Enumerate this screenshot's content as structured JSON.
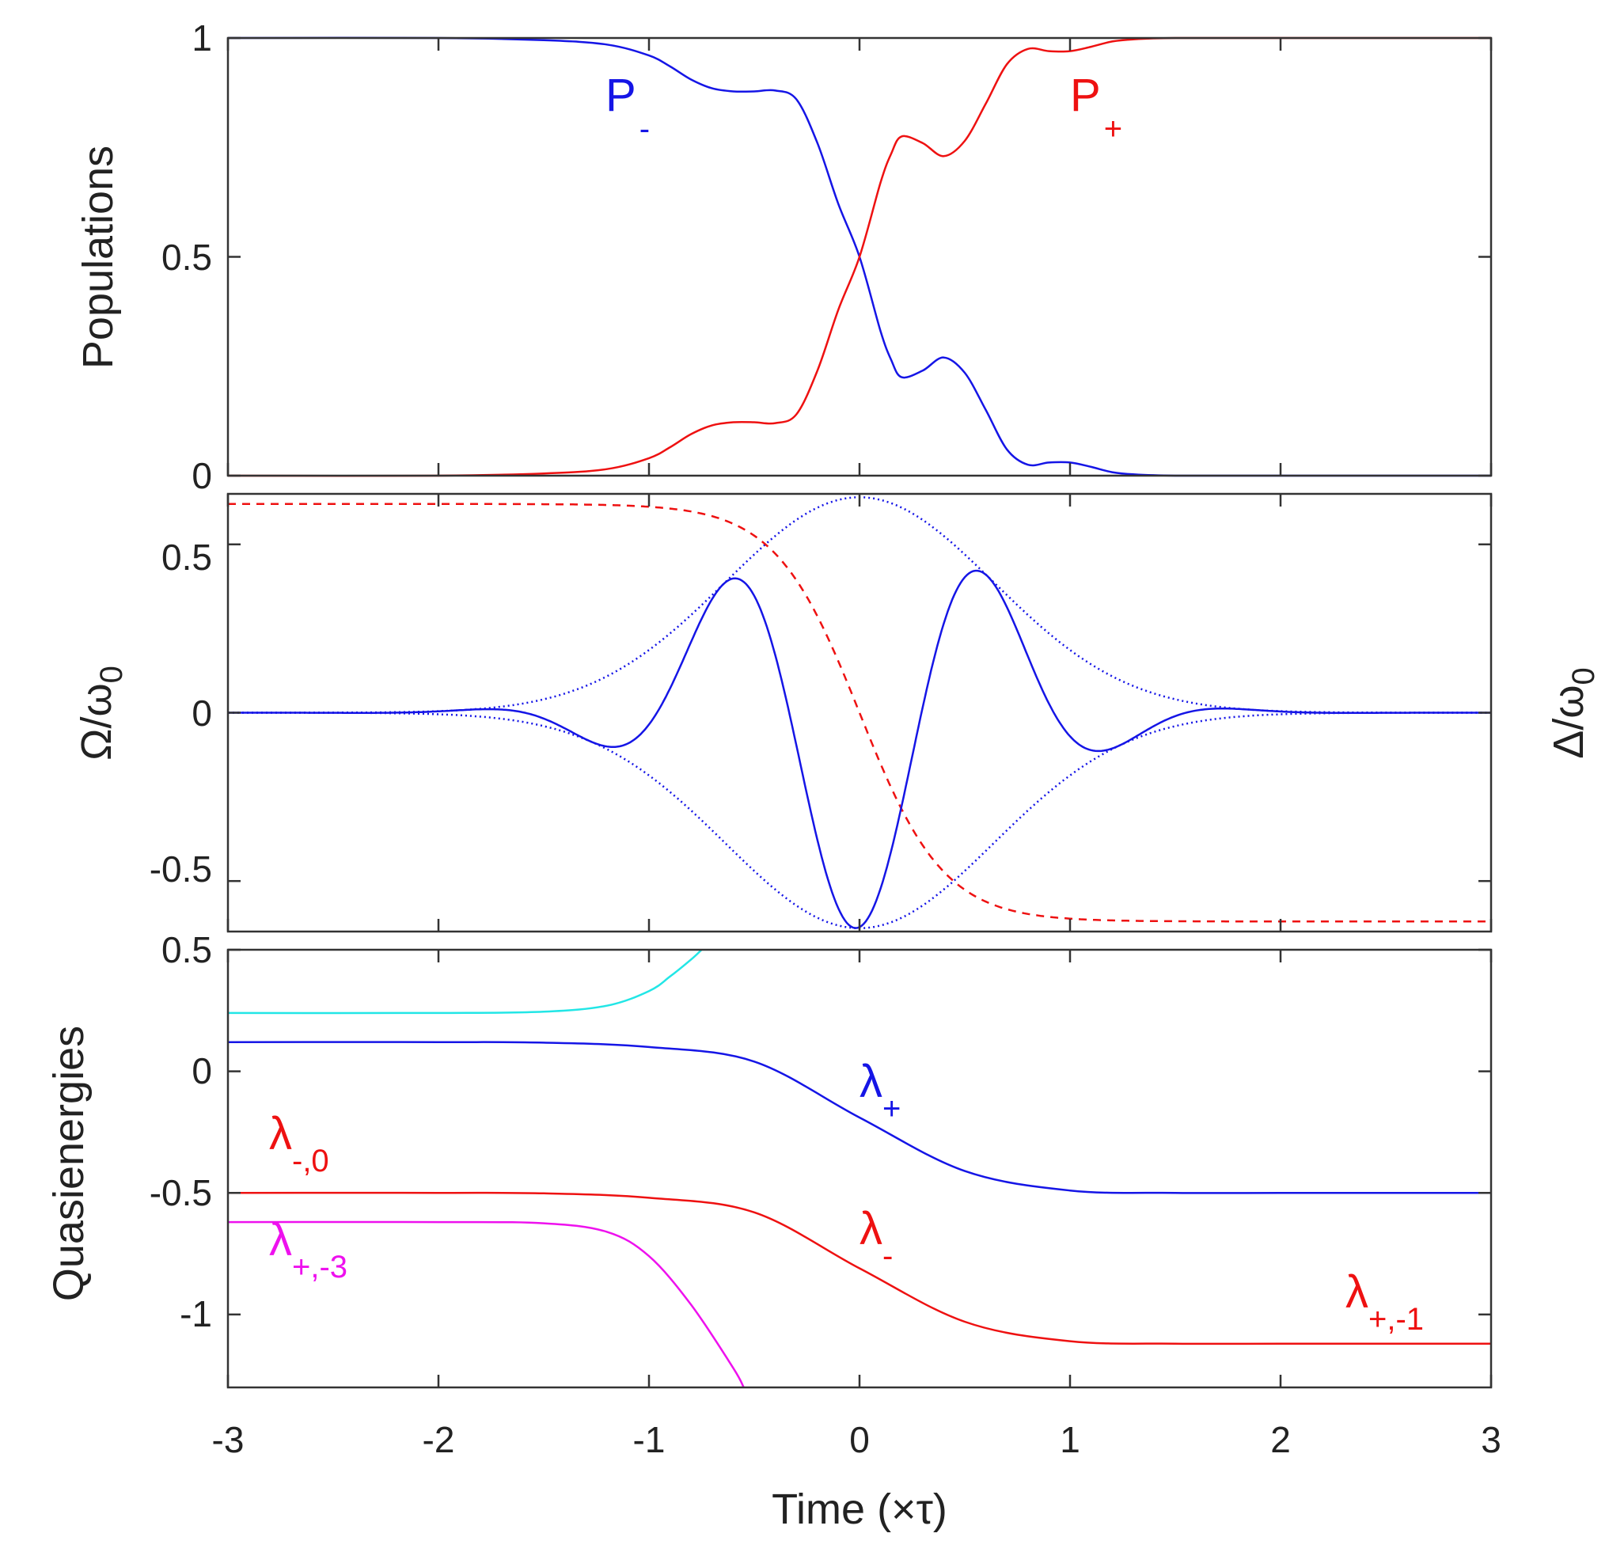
{
  "colors": {
    "blue": "#1515e6",
    "red": "#ee1111",
    "cyan": "#22e6e6",
    "magenta": "#ee11ee",
    "axis": "#333333",
    "text": "#222222"
  },
  "xaxis": {
    "label": "Time (×τ)",
    "ticks": [
      -3,
      -2,
      -1,
      0,
      1,
      2,
      3
    ],
    "tick_labels": [
      "-3",
      "-2",
      "-1",
      "0",
      "1",
      "2",
      "3"
    ],
    "range": [
      -3,
      3
    ]
  },
  "chart_data": [
    {
      "type": "line",
      "panel": "populations",
      "ylabel": "Populations",
      "ylim": [
        0,
        1
      ],
      "yticks": [
        0,
        0.5,
        1
      ],
      "ytick_labels": [
        "0",
        "0.5",
        "1"
      ],
      "series": [
        {
          "name": "P-",
          "color": "blue",
          "style": "solid",
          "x": [
            -3,
            -2,
            -1.5,
            -1.2,
            -1.0,
            -0.9,
            -0.8,
            -0.7,
            -0.6,
            -0.5,
            -0.4,
            -0.3,
            -0.2,
            -0.1,
            0.0,
            0.1,
            0.15,
            0.2,
            0.3,
            0.4,
            0.5,
            0.6,
            0.7,
            0.8,
            0.9,
            1.0,
            1.1,
            1.2,
            1.3,
            1.5,
            2,
            3
          ],
          "y": [
            1.0,
            1.0,
            0.995,
            0.985,
            0.96,
            0.935,
            0.905,
            0.885,
            0.878,
            0.878,
            0.88,
            0.86,
            0.76,
            0.62,
            0.5,
            0.33,
            0.265,
            0.225,
            0.24,
            0.27,
            0.235,
            0.15,
            0.06,
            0.025,
            0.03,
            0.03,
            0.02,
            0.008,
            0.003,
            0.0,
            0.0,
            0.0
          ]
        },
        {
          "name": "P+",
          "color": "red",
          "style": "solid",
          "x": [
            -3,
            -2,
            -1.5,
            -1.2,
            -1.0,
            -0.9,
            -0.8,
            -0.7,
            -0.6,
            -0.5,
            -0.4,
            -0.3,
            -0.2,
            -0.1,
            0.0,
            0.1,
            0.15,
            0.2,
            0.3,
            0.4,
            0.5,
            0.6,
            0.7,
            0.8,
            0.9,
            1.0,
            1.1,
            1.2,
            1.3,
            1.5,
            2,
            3
          ],
          "y": [
            0.0,
            0.0,
            0.005,
            0.015,
            0.04,
            0.065,
            0.095,
            0.115,
            0.122,
            0.122,
            0.12,
            0.14,
            0.24,
            0.38,
            0.5,
            0.67,
            0.735,
            0.775,
            0.76,
            0.73,
            0.765,
            0.85,
            0.94,
            0.975,
            0.97,
            0.97,
            0.98,
            0.992,
            0.997,
            1.0,
            1.0,
            1.0
          ]
        }
      ],
      "annotations": [
        {
          "id": "p-minus",
          "base": "P",
          "sub": "-",
          "color": "blue"
        },
        {
          "id": "p-plus",
          "base": "P",
          "sub": "+",
          "color": "red"
        }
      ]
    },
    {
      "type": "line",
      "panel": "pulse",
      "ylabel_left": "Ω/ω",
      "ylabel_left_sub": "0",
      "ylabel_right": "Δ/ω",
      "ylabel_right_sub": "0",
      "ylim": [
        -0.65,
        0.65
      ],
      "yticks": [
        -0.5,
        0,
        0.5
      ],
      "ytick_labels": [
        "-0.5",
        "0",
        "0.5"
      ],
      "functions": {
        "envelope": {
          "amplitude": 0.64,
          "width": 0.9
        },
        "rabi": {
          "amplitude": 0.64,
          "width": 0.9,
          "frequency": 5.0,
          "phase": 3.24
        },
        "detuning": {
          "amplitude": 0.62,
          "width": 0.4
        }
      },
      "series": [
        {
          "name": "Ω(t)",
          "color": "blue",
          "style": "solid"
        },
        {
          "name": "+envelope",
          "color": "blue",
          "style": "dotted"
        },
        {
          "name": "-envelope",
          "color": "blue",
          "style": "dotted"
        },
        {
          "name": "Δ(t)",
          "color": "red",
          "style": "dashed"
        }
      ]
    },
    {
      "type": "line",
      "panel": "quasienergies",
      "ylabel": "Quasienergies",
      "ylim": [
        -1.3,
        0.5
      ],
      "yticks": [
        -1,
        -0.5,
        0,
        0.5
      ],
      "ytick_labels": [
        "-1",
        "-0.5",
        "0",
        "0.5"
      ],
      "series": [
        {
          "name": "λ+",
          "color": "blue",
          "x": [
            -3,
            -2,
            -1.5,
            -1.0,
            -0.5,
            0,
            0.5,
            1.0,
            1.5,
            2,
            3
          ],
          "y": [
            0.12,
            0.12,
            0.118,
            0.1,
            0.04,
            -0.19,
            -0.41,
            -0.49,
            -0.5,
            -0.5,
            -0.5
          ]
        },
        {
          "name": "λ-",
          "color": "red",
          "x": [
            -3,
            -2,
            -1.5,
            -1.0,
            -0.5,
            0,
            0.5,
            1.0,
            1.5,
            2,
            3
          ],
          "y": [
            -0.5,
            -0.5,
            -0.502,
            -0.52,
            -0.58,
            -0.81,
            -1.03,
            -1.11,
            -1.12,
            -1.12,
            -1.12
          ]
        },
        {
          "name": "λ+,-3 branch (cyan)",
          "color": "cyan",
          "x": [
            -3,
            -2,
            -1.5,
            -1.2,
            -1.0,
            -0.9,
            -0.8,
            -0.75
          ],
          "y": [
            0.24,
            0.24,
            0.245,
            0.27,
            0.33,
            0.39,
            0.46,
            0.5
          ]
        },
        {
          "name": "λ+,-3",
          "color": "magenta",
          "x": [
            -3,
            -2,
            -1.5,
            -1.2,
            -1.0,
            -0.8,
            -0.6,
            -0.55
          ],
          "y": [
            -0.62,
            -0.62,
            -0.625,
            -0.66,
            -0.76,
            -0.96,
            -1.22,
            -1.3
          ]
        }
      ],
      "annotations": [
        {
          "id": "lam-plus",
          "base": "λ",
          "sub": "+",
          "color": "blue"
        },
        {
          "id": "lam-minus-0",
          "base": "λ",
          "sub": "-,0",
          "color": "red"
        },
        {
          "id": "lam-minus",
          "base": "λ",
          "sub": "-",
          "color": "red"
        },
        {
          "id": "lam-plus-minus3",
          "base": "λ",
          "sub": "+,-3",
          "color": "magenta"
        },
        {
          "id": "lam-plus-minus1",
          "base": "λ",
          "sub": "+,-1",
          "color": "red"
        }
      ]
    }
  ]
}
